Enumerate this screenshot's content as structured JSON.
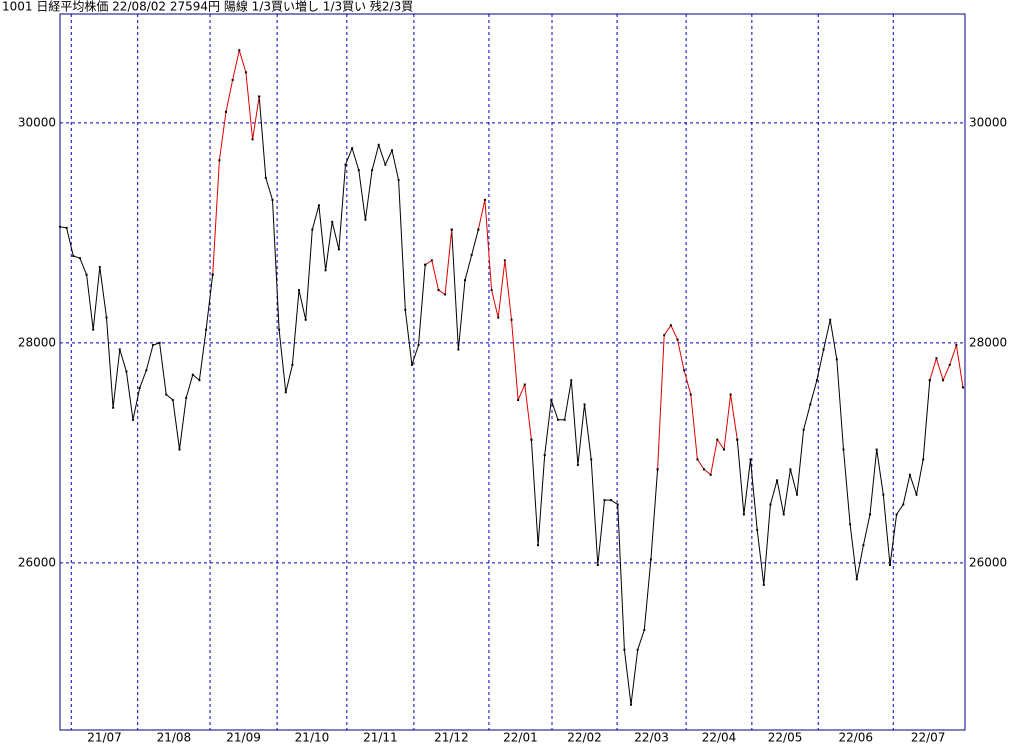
{
  "chart_data": {
    "type": "line",
    "title": "1001 日経平均株価 22/08/02 27594円 陽線 1/3買い増し 1/3買い 残2/3買",
    "xlim": [
      0,
      136
    ],
    "xticks": [
      {
        "value": 1.7,
        "label": "21/07"
      },
      {
        "value": 11.7,
        "label": "21/08"
      },
      {
        "value": 22.6,
        "label": "21/09"
      },
      {
        "value": 32.7,
        "label": "21/10"
      },
      {
        "value": 43.2,
        "label": "21/11"
      },
      {
        "value": 53.3,
        "label": "21/12"
      },
      {
        "value": 64.6,
        "label": "22/01"
      },
      {
        "value": 74.1,
        "label": "22/02"
      },
      {
        "value": 83.9,
        "label": "22/03"
      },
      {
        "value": 94.3,
        "label": "22/04"
      },
      {
        "value": 104.2,
        "label": "22/05"
      },
      {
        "value": 114.2,
        "label": "22/06"
      },
      {
        "value": 125.5,
        "label": "22/07"
      }
    ],
    "ylim": [
      24480,
      30990
    ],
    "yticks": [
      26000,
      28000,
      30000
    ],
    "grid": true,
    "grid_color": "#0000c0",
    "frame_color": "#000080",
    "marker_color": "#000000",
    "series": [
      {
        "color": "#000000",
        "values": [
          29055,
          29045,
          28790,
          28770,
          28620,
          28120,
          28690,
          28230,
          27410,
          27940,
          27740,
          27300,
          27590,
          27750,
          27980,
          28000,
          27530,
          27480,
          27030,
          27500,
          27710,
          27660,
          28120,
          28620,
          null,
          null,
          null,
          null,
          null,
          null,
          30240,
          29500,
          29300,
          28120,
          27550,
          27800,
          28480,
          28210,
          29030,
          29250,
          28660,
          29100,
          28850,
          29620,
          29770,
          29570,
          29120,
          29570,
          29800,
          29620,
          29750,
          29480,
          28300,
          27800,
          27980,
          28710,
          null,
          null,
          null,
          29030,
          27940,
          28570,
          28800,
          29030,
          null,
          null,
          null,
          null,
          null,
          null,
          null,
          27120,
          26160,
          26980,
          27480,
          27300,
          27300,
          27660,
          26890,
          27440,
          26940,
          25980,
          26570,
          26570,
          26530,
          25210,
          24710,
          25210,
          25390,
          26030,
          26850,
          null,
          null,
          null,
          null,
          null,
          null,
          null,
          null,
          null,
          null,
          null,
          27120,
          26440,
          26940,
          26300,
          25800,
          26530,
          26750,
          26440,
          26850,
          26620,
          27210,
          27440,
          27660,
          27940,
          28210,
          27850,
          27030,
          26350,
          25850,
          26160,
          26440,
          27030,
          26620,
          25980,
          26440,
          26530,
          26800,
          26620,
          26940,
          27660,
          null,
          null,
          null,
          null,
          null
        ]
      },
      {
        "color": "#e00000",
        "values": [
          null,
          null,
          null,
          null,
          null,
          null,
          null,
          null,
          null,
          null,
          null,
          null,
          null,
          null,
          null,
          null,
          null,
          null,
          null,
          null,
          null,
          null,
          null,
          28620,
          29660,
          30100,
          30390,
          30660,
          30460,
          29850,
          30240,
          null,
          null,
          null,
          null,
          null,
          null,
          null,
          null,
          null,
          null,
          null,
          null,
          null,
          null,
          null,
          null,
          null,
          null,
          null,
          null,
          null,
          null,
          null,
          null,
          28710,
          28750,
          28480,
          28440,
          29030,
          null,
          null,
          null,
          29030,
          29300,
          28480,
          28230,
          28750,
          28210,
          27480,
          27620,
          27120,
          null,
          null,
          null,
          null,
          null,
          null,
          null,
          null,
          null,
          null,
          null,
          null,
          null,
          null,
          null,
          null,
          null,
          null,
          26850,
          28070,
          28160,
          28030,
          27750,
          27530,
          26940,
          26850,
          26800,
          27120,
          27030,
          27530,
          27120,
          null,
          null,
          null,
          null,
          null,
          null,
          null,
          null,
          null,
          null,
          null,
          null,
          null,
          null,
          null,
          null,
          null,
          null,
          null,
          null,
          null,
          null,
          null,
          null,
          null,
          null,
          null,
          null,
          27660,
          27860,
          27660,
          27800,
          27980,
          27594
        ]
      }
    ]
  }
}
